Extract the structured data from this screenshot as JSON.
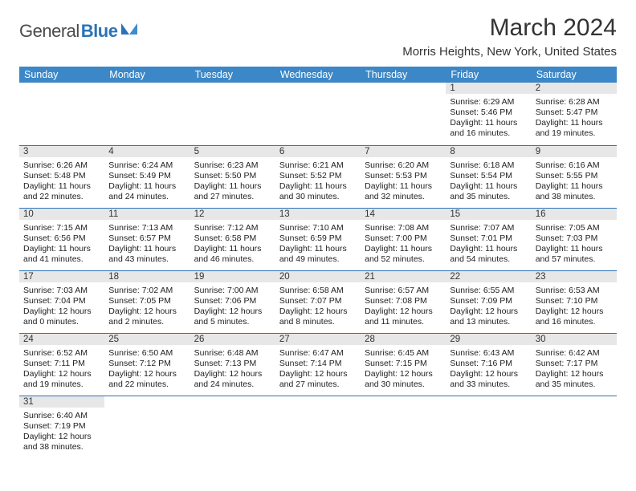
{
  "logo": {
    "word1": "General",
    "word2": "Blue"
  },
  "title": "March 2024",
  "location": "Morris Heights, New York, United States",
  "colors": {
    "header_bg": "#3c87c7",
    "header_text": "#ffffff",
    "daynum_bg": "#e7e7e7",
    "rule": "#2b73b6",
    "text": "#222222",
    "logo_gray": "#4a4a4a",
    "logo_blue": "#2b73b6"
  },
  "day_headers": [
    "Sunday",
    "Monday",
    "Tuesday",
    "Wednesday",
    "Thursday",
    "Friday",
    "Saturday"
  ],
  "weeks": [
    [
      null,
      null,
      null,
      null,
      null,
      {
        "n": "1",
        "sr": "Sunrise: 6:29 AM",
        "ss": "Sunset: 5:46 PM",
        "d1": "Daylight: 11 hours",
        "d2": "and 16 minutes."
      },
      {
        "n": "2",
        "sr": "Sunrise: 6:28 AM",
        "ss": "Sunset: 5:47 PM",
        "d1": "Daylight: 11 hours",
        "d2": "and 19 minutes."
      }
    ],
    [
      {
        "n": "3",
        "sr": "Sunrise: 6:26 AM",
        "ss": "Sunset: 5:48 PM",
        "d1": "Daylight: 11 hours",
        "d2": "and 22 minutes."
      },
      {
        "n": "4",
        "sr": "Sunrise: 6:24 AM",
        "ss": "Sunset: 5:49 PM",
        "d1": "Daylight: 11 hours",
        "d2": "and 24 minutes."
      },
      {
        "n": "5",
        "sr": "Sunrise: 6:23 AM",
        "ss": "Sunset: 5:50 PM",
        "d1": "Daylight: 11 hours",
        "d2": "and 27 minutes."
      },
      {
        "n": "6",
        "sr": "Sunrise: 6:21 AM",
        "ss": "Sunset: 5:52 PM",
        "d1": "Daylight: 11 hours",
        "d2": "and 30 minutes."
      },
      {
        "n": "7",
        "sr": "Sunrise: 6:20 AM",
        "ss": "Sunset: 5:53 PM",
        "d1": "Daylight: 11 hours",
        "d2": "and 32 minutes."
      },
      {
        "n": "8",
        "sr": "Sunrise: 6:18 AM",
        "ss": "Sunset: 5:54 PM",
        "d1": "Daylight: 11 hours",
        "d2": "and 35 minutes."
      },
      {
        "n": "9",
        "sr": "Sunrise: 6:16 AM",
        "ss": "Sunset: 5:55 PM",
        "d1": "Daylight: 11 hours",
        "d2": "and 38 minutes."
      }
    ],
    [
      {
        "n": "10",
        "sr": "Sunrise: 7:15 AM",
        "ss": "Sunset: 6:56 PM",
        "d1": "Daylight: 11 hours",
        "d2": "and 41 minutes."
      },
      {
        "n": "11",
        "sr": "Sunrise: 7:13 AM",
        "ss": "Sunset: 6:57 PM",
        "d1": "Daylight: 11 hours",
        "d2": "and 43 minutes."
      },
      {
        "n": "12",
        "sr": "Sunrise: 7:12 AM",
        "ss": "Sunset: 6:58 PM",
        "d1": "Daylight: 11 hours",
        "d2": "and 46 minutes."
      },
      {
        "n": "13",
        "sr": "Sunrise: 7:10 AM",
        "ss": "Sunset: 6:59 PM",
        "d1": "Daylight: 11 hours",
        "d2": "and 49 minutes."
      },
      {
        "n": "14",
        "sr": "Sunrise: 7:08 AM",
        "ss": "Sunset: 7:00 PM",
        "d1": "Daylight: 11 hours",
        "d2": "and 52 minutes."
      },
      {
        "n": "15",
        "sr": "Sunrise: 7:07 AM",
        "ss": "Sunset: 7:01 PM",
        "d1": "Daylight: 11 hours",
        "d2": "and 54 minutes."
      },
      {
        "n": "16",
        "sr": "Sunrise: 7:05 AM",
        "ss": "Sunset: 7:03 PM",
        "d1": "Daylight: 11 hours",
        "d2": "and 57 minutes."
      }
    ],
    [
      {
        "n": "17",
        "sr": "Sunrise: 7:03 AM",
        "ss": "Sunset: 7:04 PM",
        "d1": "Daylight: 12 hours",
        "d2": "and 0 minutes."
      },
      {
        "n": "18",
        "sr": "Sunrise: 7:02 AM",
        "ss": "Sunset: 7:05 PM",
        "d1": "Daylight: 12 hours",
        "d2": "and 2 minutes."
      },
      {
        "n": "19",
        "sr": "Sunrise: 7:00 AM",
        "ss": "Sunset: 7:06 PM",
        "d1": "Daylight: 12 hours",
        "d2": "and 5 minutes."
      },
      {
        "n": "20",
        "sr": "Sunrise: 6:58 AM",
        "ss": "Sunset: 7:07 PM",
        "d1": "Daylight: 12 hours",
        "d2": "and 8 minutes."
      },
      {
        "n": "21",
        "sr": "Sunrise: 6:57 AM",
        "ss": "Sunset: 7:08 PM",
        "d1": "Daylight: 12 hours",
        "d2": "and 11 minutes."
      },
      {
        "n": "22",
        "sr": "Sunrise: 6:55 AM",
        "ss": "Sunset: 7:09 PM",
        "d1": "Daylight: 12 hours",
        "d2": "and 13 minutes."
      },
      {
        "n": "23",
        "sr": "Sunrise: 6:53 AM",
        "ss": "Sunset: 7:10 PM",
        "d1": "Daylight: 12 hours",
        "d2": "and 16 minutes."
      }
    ],
    [
      {
        "n": "24",
        "sr": "Sunrise: 6:52 AM",
        "ss": "Sunset: 7:11 PM",
        "d1": "Daylight: 12 hours",
        "d2": "and 19 minutes."
      },
      {
        "n": "25",
        "sr": "Sunrise: 6:50 AM",
        "ss": "Sunset: 7:12 PM",
        "d1": "Daylight: 12 hours",
        "d2": "and 22 minutes."
      },
      {
        "n": "26",
        "sr": "Sunrise: 6:48 AM",
        "ss": "Sunset: 7:13 PM",
        "d1": "Daylight: 12 hours",
        "d2": "and 24 minutes."
      },
      {
        "n": "27",
        "sr": "Sunrise: 6:47 AM",
        "ss": "Sunset: 7:14 PM",
        "d1": "Daylight: 12 hours",
        "d2": "and 27 minutes."
      },
      {
        "n": "28",
        "sr": "Sunrise: 6:45 AM",
        "ss": "Sunset: 7:15 PM",
        "d1": "Daylight: 12 hours",
        "d2": "and 30 minutes."
      },
      {
        "n": "29",
        "sr": "Sunrise: 6:43 AM",
        "ss": "Sunset: 7:16 PM",
        "d1": "Daylight: 12 hours",
        "d2": "and 33 minutes."
      },
      {
        "n": "30",
        "sr": "Sunrise: 6:42 AM",
        "ss": "Sunset: 7:17 PM",
        "d1": "Daylight: 12 hours",
        "d2": "and 35 minutes."
      }
    ],
    [
      {
        "n": "31",
        "sr": "Sunrise: 6:40 AM",
        "ss": "Sunset: 7:19 PM",
        "d1": "Daylight: 12 hours",
        "d2": "and 38 minutes."
      },
      null,
      null,
      null,
      null,
      null,
      null
    ]
  ]
}
